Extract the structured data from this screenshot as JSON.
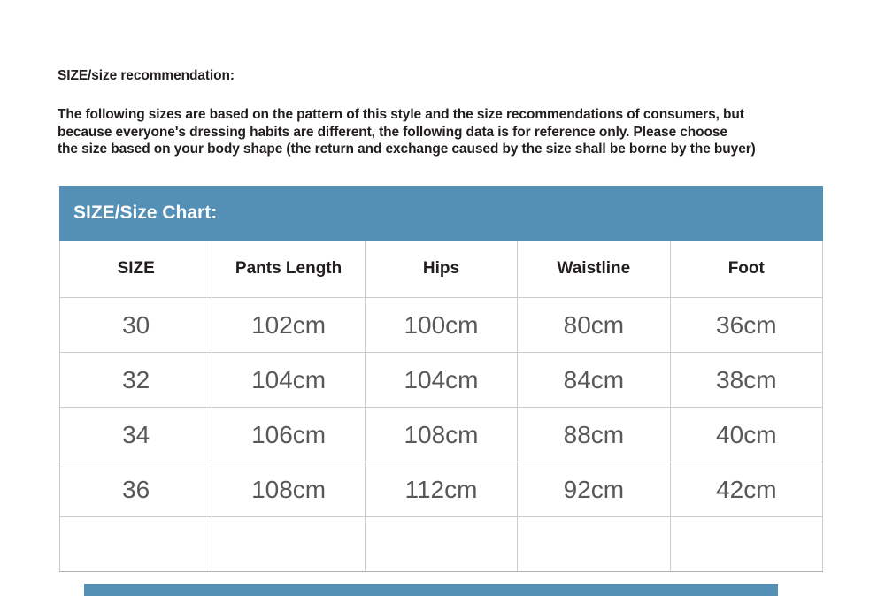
{
  "colors": {
    "accent": "#5490b6",
    "heading_text": "#221d1e",
    "data_text": "#58585a",
    "border": "#cccccc"
  },
  "intro": {
    "title": "SIZE/size recommendation:",
    "lines": [
      "The following sizes are based on the pattern of this style and the size recommendations of consumers, but",
      "because everyone's dressing habits are different, the following data is for reference only. Please choose",
      "the size based on your body shape (the return and exchange caused by the size shall be borne by the buyer)"
    ]
  },
  "size_chart": {
    "header_label": "SIZE/Size Chart:",
    "columns": [
      "SIZE",
      "Pants Length",
      "Hips",
      "Waistline",
      "Foot"
    ],
    "rows": [
      [
        "30",
        "102cm",
        "100cm",
        "80cm",
        "36cm"
      ],
      [
        "32",
        "104cm",
        "104cm",
        "84cm",
        "38cm"
      ],
      [
        "34",
        "106cm",
        "108cm",
        "88cm",
        "40cm"
      ],
      [
        "36",
        "108cm",
        "112cm",
        "92cm",
        "42cm"
      ],
      [
        "",
        "",
        "",
        "",
        ""
      ]
    ]
  }
}
